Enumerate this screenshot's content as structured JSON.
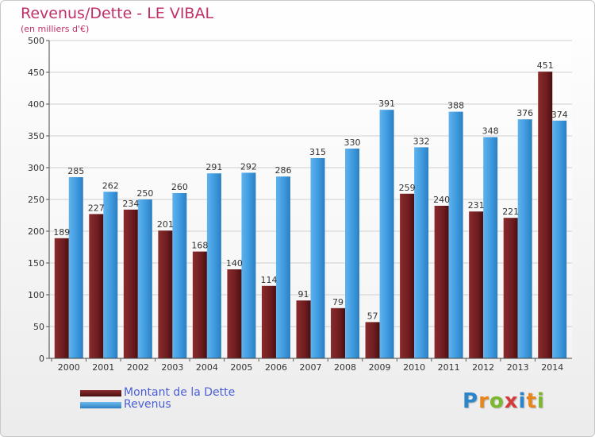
{
  "header": {
    "title": "Revenus/Dette - LE VIBAL",
    "subtitle": "(en milliers d'€)"
  },
  "colors": {
    "dette": "#6e1d1f",
    "revenus": "#3b97dc",
    "title": "#c0306a",
    "legend_text": "#4b5fd6"
  },
  "chart_data": {
    "type": "bar",
    "categories": [
      "2000",
      "2001",
      "2002",
      "2003",
      "2004",
      "2005",
      "2006",
      "2007",
      "2008",
      "2009",
      "2010",
      "2011",
      "2012",
      "2013",
      "2014"
    ],
    "series": [
      {
        "name": "Montant de la Dette",
        "values": [
          189,
          227,
          234,
          201,
          168,
          140,
          114,
          91,
          79,
          57,
          259,
          240,
          231,
          221,
          451
        ]
      },
      {
        "name": "Revenus",
        "values": [
          285,
          262,
          250,
          260,
          291,
          292,
          286,
          315,
          330,
          391,
          332,
          388,
          348,
          376,
          374
        ]
      }
    ],
    "y_ticks": [
      0,
      50,
      100,
      150,
      200,
      250,
      300,
      350,
      400,
      450,
      500
    ],
    "ylim": [
      0,
      500
    ],
    "grid": true,
    "legend_position": "bottom-left"
  },
  "legend": {
    "items": [
      {
        "label": "Montant de la Dette"
      },
      {
        "label": "Revenus"
      }
    ]
  },
  "logo": {
    "letters": [
      "P",
      "r",
      "o",
      "x",
      "i",
      "t",
      "i"
    ],
    "colors": [
      "#2a86c8",
      "#e8861b",
      "#7cb82f",
      "#d63b3b",
      "#2a86c8",
      "#e8861b",
      "#7cb82f"
    ]
  }
}
